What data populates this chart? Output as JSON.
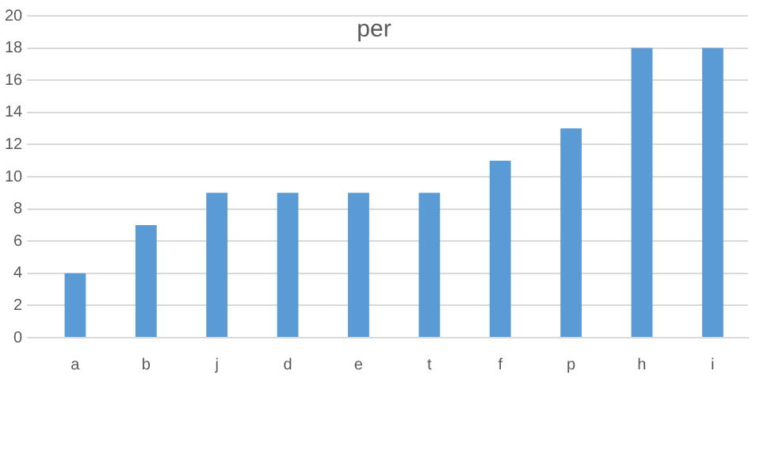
{
  "chart_data": {
    "type": "bar",
    "title": "per",
    "categories": [
      "a",
      "b",
      "j",
      "d",
      "e",
      "t",
      "f",
      "p",
      "h",
      "i"
    ],
    "values": [
      4,
      7,
      9,
      9,
      9,
      9,
      11,
      13,
      18,
      18
    ],
    "color": "#5b9bd5",
    "ylim": [
      0,
      20
    ],
    "yticks": [
      0,
      2,
      4,
      6,
      8,
      10,
      12,
      14,
      16,
      18,
      20
    ],
    "grid": "y",
    "legend": false
  }
}
